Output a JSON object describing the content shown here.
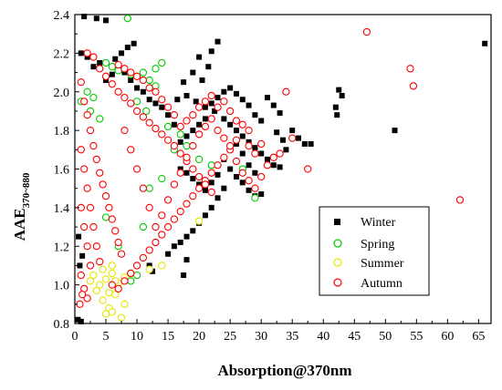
{
  "chart_data": {
    "type": "scatter",
    "title": "",
    "xlabel": "Absorption@370nm",
    "ylabel_main": "AAE",
    "ylabel_sub": "370~880",
    "xlim": [
      0,
      67
    ],
    "ylim": [
      0.8,
      2.4
    ],
    "xticks": [
      "0",
      "5",
      "10",
      "15",
      "20",
      "25",
      "30",
      "35",
      "40",
      "45",
      "50",
      "55",
      "60",
      "65"
    ],
    "yticks": [
      "0.8",
      "1.0",
      "1.2",
      "1.4",
      "1.6",
      "1.8",
      "2.0",
      "2.2",
      "2.4"
    ],
    "grid": false,
    "legend_position": "lower-right",
    "series": [
      {
        "name": "Winter",
        "marker": "square",
        "color": "#000000",
        "points": [
          [
            66,
            2.25
          ],
          [
            51.5,
            1.8
          ],
          [
            42.5,
            2.01
          ],
          [
            42,
            1.92
          ],
          [
            42.2,
            1.88
          ],
          [
            43,
            1.98
          ],
          [
            1.5,
            2.39
          ],
          [
            5,
            2.37
          ],
          [
            3.5,
            2.38
          ],
          [
            1,
            2.2
          ],
          [
            2,
            2.18
          ],
          [
            4,
            2.15
          ],
          [
            3,
            2.13
          ],
          [
            23,
            2.26
          ],
          [
            22,
            2.21
          ],
          [
            20,
            2.18
          ],
          [
            21.5,
            2.13
          ],
          [
            20.5,
            2.06
          ],
          [
            19,
            2.1
          ],
          [
            17.5,
            2.05
          ],
          [
            18,
            1.98
          ],
          [
            19.5,
            1.95
          ],
          [
            21,
            1.92
          ],
          [
            22.5,
            1.9
          ],
          [
            24,
            1.86
          ],
          [
            25,
            1.83
          ],
          [
            26,
            1.8
          ],
          [
            27,
            1.77
          ],
          [
            28,
            1.74
          ],
          [
            29,
            1.71
          ],
          [
            30,
            1.68
          ],
          [
            31,
            1.65
          ],
          [
            32,
            1.62
          ],
          [
            33,
            1.61
          ],
          [
            31,
            1.97
          ],
          [
            32,
            1.93
          ],
          [
            33,
            1.89
          ],
          [
            30,
            1.85
          ],
          [
            29,
            1.88
          ],
          [
            28,
            1.93
          ],
          [
            27,
            1.96
          ],
          [
            26,
            1.99
          ],
          [
            25,
            2.02
          ],
          [
            24,
            2.0
          ],
          [
            23,
            1.97
          ],
          [
            22,
            1.94
          ],
          [
            21,
            1.86
          ],
          [
            20,
            1.83
          ],
          [
            19,
            1.8
          ],
          [
            18,
            1.77
          ],
          [
            17,
            1.74
          ],
          [
            16,
            1.83
          ],
          [
            15,
            1.88
          ],
          [
            14,
            1.92
          ],
          [
            16.5,
            1.96
          ],
          [
            35,
            1.8
          ],
          [
            36,
            1.76
          ],
          [
            37,
            1.73
          ],
          [
            38,
            1.73
          ],
          [
            34,
            1.7
          ],
          [
            33.5,
            1.75
          ],
          [
            32.5,
            1.79
          ],
          [
            25,
            1.6
          ],
          [
            26,
            1.56
          ],
          [
            27,
            1.53
          ],
          [
            28,
            1.49
          ],
          [
            29,
            1.46
          ],
          [
            30,
            1.47
          ],
          [
            24,
            1.5
          ],
          [
            23,
            1.45
          ],
          [
            22,
            1.4
          ],
          [
            21,
            1.36
          ],
          [
            20,
            1.32
          ],
          [
            19,
            1.28
          ],
          [
            18,
            1.25
          ],
          [
            17,
            1.22
          ],
          [
            16,
            1.2
          ],
          [
            15,
            1.16
          ],
          [
            17.5,
            1.05
          ],
          [
            18,
            1.13
          ],
          [
            12,
            1.1
          ],
          [
            12.5,
            1.07
          ],
          [
            0.5,
            0.82
          ],
          [
            1,
            0.81
          ],
          [
            0.6,
            1.25
          ],
          [
            0.8,
            1.1
          ],
          [
            1.2,
            1.15
          ],
          [
            10,
            2.02
          ],
          [
            11,
            2.0
          ],
          [
            12,
            1.96
          ],
          [
            13,
            1.94
          ],
          [
            9,
            2.06
          ],
          [
            8,
            2.1
          ],
          [
            7,
            2.12
          ],
          [
            6,
            2.09
          ],
          [
            5,
            2.06
          ],
          [
            6.5,
            2.17
          ],
          [
            7.5,
            2.2
          ],
          [
            8.5,
            2.23
          ],
          [
            9.5,
            2.25
          ],
          [
            17,
            1.6
          ],
          [
            18,
            1.58
          ],
          [
            19,
            1.55
          ],
          [
            20,
            1.52
          ],
          [
            21,
            1.49
          ],
          [
            22,
            1.53
          ],
          [
            23,
            1.57
          ],
          [
            24,
            1.65
          ],
          [
            25,
            1.7
          ],
          [
            26,
            1.73
          ],
          [
            27,
            1.68
          ],
          [
            28,
            1.62
          ],
          [
            29,
            1.58
          ]
        ]
      },
      {
        "name": "Spring",
        "marker": "circle-open",
        "color": "#00cc00",
        "points": [
          [
            8.5,
            2.38
          ],
          [
            5,
            2.15
          ],
          [
            6,
            2.13
          ],
          [
            7,
            2.11
          ],
          [
            9,
            2.09
          ],
          [
            14,
            2.15
          ],
          [
            13,
            2.12
          ],
          [
            11,
            2.1
          ],
          [
            12,
            2.06
          ],
          [
            13,
            2.03
          ],
          [
            2,
            2.0
          ],
          [
            3,
            1.97
          ],
          [
            1,
            1.95
          ],
          [
            2.5,
            1.9
          ],
          [
            4,
            1.86
          ],
          [
            10,
            1.95
          ],
          [
            11.5,
            1.9
          ],
          [
            15,
            1.82
          ],
          [
            17,
            1.78
          ],
          [
            18,
            1.72
          ],
          [
            16,
            1.7
          ],
          [
            20,
            1.65
          ],
          [
            22,
            1.62
          ],
          [
            27,
            1.6
          ],
          [
            29,
            1.45
          ],
          [
            14,
            1.55
          ],
          [
            12,
            1.5
          ],
          [
            11,
            1.3
          ],
          [
            9,
            1.02
          ],
          [
            10,
            1.05
          ],
          [
            7,
            1.2
          ],
          [
            5,
            1.35
          ]
        ]
      },
      {
        "name": "Summer",
        "marker": "circle-open",
        "color": "#e6e600",
        "points": [
          [
            5,
            0.85
          ],
          [
            5.5,
            0.88
          ],
          [
            6,
            0.86
          ],
          [
            4.5,
            0.92
          ],
          [
            6.5,
            0.95
          ],
          [
            7.5,
            0.83
          ],
          [
            8,
            0.9
          ],
          [
            3.5,
            0.97
          ],
          [
            4,
            1.0
          ],
          [
            5,
            1.03
          ],
          [
            6,
            1.06
          ],
          [
            7,
            1.01
          ],
          [
            8,
            1.04
          ],
          [
            9,
            1.06
          ],
          [
            3,
            1.05
          ],
          [
            4.5,
            1.08
          ],
          [
            6,
            1.1
          ],
          [
            2.5,
            1.02
          ],
          [
            20,
            1.33
          ],
          [
            14,
            1.1
          ],
          [
            12,
            1.08
          ],
          [
            7,
            0.98
          ],
          [
            5.5,
            0.96
          ],
          [
            6.5,
            1.02
          ]
        ]
      },
      {
        "name": "Autumn",
        "marker": "circle-open",
        "color": "#ff0000",
        "points": [
          [
            47,
            2.31
          ],
          [
            54,
            2.12
          ],
          [
            54.5,
            2.03
          ],
          [
            62,
            1.44
          ],
          [
            34,
            2.0
          ],
          [
            35,
            1.76
          ],
          [
            37.5,
            1.6
          ],
          [
            30,
            1.73
          ],
          [
            28,
            1.8
          ],
          [
            27,
            1.83
          ],
          [
            26,
            1.75
          ],
          [
            25,
            1.7
          ],
          [
            24,
            1.66
          ],
          [
            23,
            1.62
          ],
          [
            22,
            1.58
          ],
          [
            21,
            1.54
          ],
          [
            20,
            1.5
          ],
          [
            19,
            1.46
          ],
          [
            18,
            1.42
          ],
          [
            17,
            1.38
          ],
          [
            16,
            1.34
          ],
          [
            15,
            1.3
          ],
          [
            14,
            1.26
          ],
          [
            13,
            1.22
          ],
          [
            12,
            1.18
          ],
          [
            11,
            1.14
          ],
          [
            10,
            1.1
          ],
          [
            9,
            1.06
          ],
          [
            8,
            1.02
          ],
          [
            7,
            0.98
          ],
          [
            6,
            1.0
          ],
          [
            2,
            2.2
          ],
          [
            3,
            2.18
          ],
          [
            4,
            2.12
          ],
          [
            5,
            2.08
          ],
          [
            6,
            2.04
          ],
          [
            7,
            2.0
          ],
          [
            8,
            1.97
          ],
          [
            9,
            1.94
          ],
          [
            10,
            1.9
          ],
          [
            11,
            1.87
          ],
          [
            12,
            1.84
          ],
          [
            13,
            1.81
          ],
          [
            14,
            1.78
          ],
          [
            15,
            1.75
          ],
          [
            16,
            1.72
          ],
          [
            17,
            1.68
          ],
          [
            18,
            1.64
          ],
          [
            19,
            1.6
          ],
          [
            20,
            1.56
          ],
          [
            21,
            1.52
          ],
          [
            22,
            1.48
          ],
          [
            1,
            2.05
          ],
          [
            1.5,
            1.95
          ],
          [
            2,
            1.88
          ],
          [
            2.5,
            1.8
          ],
          [
            3,
            1.72
          ],
          [
            3.5,
            1.65
          ],
          [
            4,
            1.58
          ],
          [
            4.5,
            1.52
          ],
          [
            5,
            1.46
          ],
          [
            5.5,
            1.4
          ],
          [
            6,
            1.34
          ],
          [
            6.5,
            1.28
          ],
          [
            7,
            1.22
          ],
          [
            7.5,
            1.16
          ],
          [
            1,
            1.7
          ],
          [
            1.5,
            1.6
          ],
          [
            2,
            1.5
          ],
          [
            2.5,
            1.4
          ],
          [
            3,
            1.3
          ],
          [
            3.5,
            1.2
          ],
          [
            4,
            1.12
          ],
          [
            1,
            1.4
          ],
          [
            1.5,
            1.3
          ],
          [
            2,
            1.2
          ],
          [
            2.5,
            1.1
          ],
          [
            1,
            1.05
          ],
          [
            1.5,
            0.98
          ],
          [
            2,
            0.93
          ],
          [
            0.8,
            0.9
          ],
          [
            1.2,
            0.95
          ],
          [
            8,
            1.8
          ],
          [
            9,
            1.7
          ],
          [
            10,
            1.6
          ],
          [
            11,
            1.5
          ],
          [
            12,
            1.4
          ],
          [
            13,
            1.3
          ],
          [
            14,
            1.36
          ],
          [
            15,
            1.44
          ],
          [
            16,
            1.52
          ],
          [
            17,
            1.58
          ],
          [
            18,
            1.66
          ],
          [
            19,
            1.72
          ],
          [
            20,
            1.78
          ],
          [
            21,
            1.82
          ],
          [
            22,
            1.86
          ],
          [
            23,
            1.8
          ],
          [
            24,
            1.76
          ],
          [
            25,
            1.72
          ],
          [
            26,
            1.64
          ],
          [
            27,
            1.58
          ],
          [
            28,
            1.54
          ],
          [
            29,
            1.5
          ],
          [
            30,
            1.56
          ],
          [
            31,
            1.62
          ],
          [
            32,
            1.66
          ],
          [
            33,
            1.68
          ],
          [
            29,
            1.68
          ],
          [
            28,
            1.72
          ],
          [
            26,
            1.85
          ],
          [
            25,
            1.9
          ],
          [
            24,
            1.95
          ],
          [
            23,
            1.92
          ],
          [
            22,
            1.98
          ],
          [
            21,
            1.95
          ],
          [
            20,
            1.92
          ],
          [
            19,
            1.88
          ],
          [
            18,
            1.85
          ],
          [
            17,
            1.82
          ],
          [
            16,
            1.88
          ],
          [
            15,
            1.92
          ],
          [
            14,
            1.96
          ],
          [
            13,
            2.0
          ],
          [
            12,
            2.02
          ],
          [
            11,
            2.06
          ],
          [
            10,
            2.08
          ],
          [
            9,
            2.1
          ],
          [
            8,
            2.12
          ],
          [
            7,
            2.14
          ]
        ]
      }
    ]
  },
  "colors": {
    "background": "#ffffff",
    "axis": "#000000"
  }
}
